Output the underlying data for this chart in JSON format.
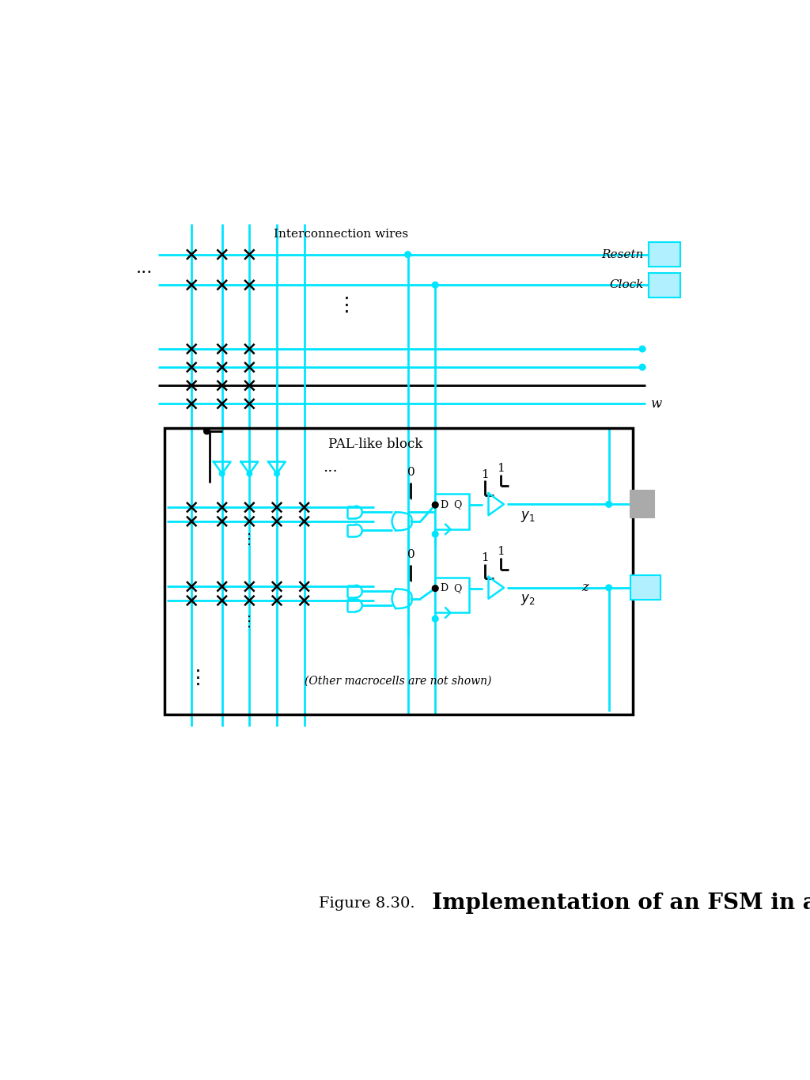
{
  "title_prefix": "Figure 8.30.",
  "title_main": "  Implementation of an FSM in a CPLD.",
  "cyan": "#00E5FF",
  "black": "#000000",
  "gray": "#AAAAAA",
  "light_cyan": "#B0F0FF",
  "bg": "#FFFFFF",
  "interconnect_label": "Interconnection wires",
  "pal_label": "PAL-like block",
  "resetn_label": "Resetn",
  "clock_label": "Clock",
  "w_label": "w",
  "z_label": "z",
  "y1_label": "y_1",
  "y2_label": "y_2",
  "other_label": "(Other macrocells are not shown)"
}
